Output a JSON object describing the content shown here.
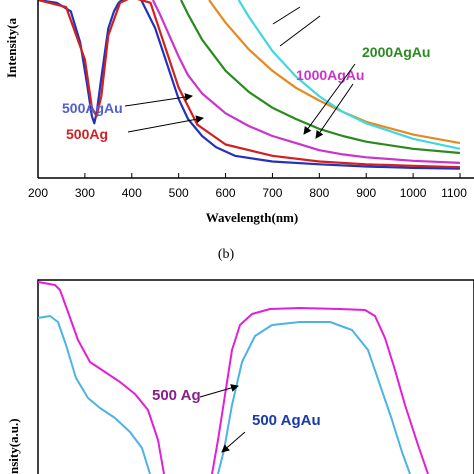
{
  "chart_data": [
    {
      "type": "line",
      "xlabel": "Wavelength(nm)",
      "ylabel": "Intensity(a",
      "xlim": [
        200,
        1100
      ],
      "xticks": [
        "200",
        "300",
        "400",
        "500",
        "600",
        "700",
        "800",
        "900",
        "1000",
        "1100"
      ],
      "grid": false,
      "series": [
        {
          "name": "500AgAu",
          "color": "#2233bb",
          "x": [
            200,
            240,
            270,
            290,
            305,
            315,
            320,
            325,
            335,
            350,
            362,
            372,
            385,
            400,
            420,
            450,
            480,
            500,
            520,
            550,
            580,
            620,
            700,
            800,
            900,
            1000,
            1100
          ],
          "y": [
            120,
            118,
            112,
            90,
            60,
            38,
            33,
            40,
            65,
            100,
            112,
            118,
            122,
            122,
            120,
            100,
            70,
            50,
            36,
            24,
            16,
            10,
            6,
            4,
            2.5,
            1.5,
            1
          ]
        },
        {
          "name": "500Ag",
          "color": "#d21f1f",
          "x": [
            200,
            260,
            300,
            315,
            325,
            335,
            350,
            375,
            400,
            440,
            480,
            500,
            540,
            600,
            700,
            800,
            900,
            1000,
            1100
          ],
          "y": [
            120,
            115,
            78,
            44,
            38,
            52,
            95,
            118,
            122,
            118,
            78,
            58,
            32,
            18,
            10,
            6,
            4,
            3,
            2
          ]
        },
        {
          "name": "1000AgAu",
          "color": "#cc33cc",
          "x": [
            445,
            460,
            480,
            500,
            520,
            550,
            600,
            650,
            700,
            750,
            800,
            850,
            900,
            1000,
            1100
          ],
          "y": [
            120,
            110,
            95,
            80,
            67,
            54,
            40,
            31,
            24,
            19,
            14,
            11,
            9,
            6.5,
            5
          ]
        },
        {
          "name": "2000AgAu",
          "color": "#2a8a1f",
          "x": [
            505,
            520,
            550,
            600,
            650,
            700,
            750,
            800,
            850,
            900,
            1000,
            1100
          ],
          "y": [
            120,
            110,
            92,
            70,
            55,
            44,
            36,
            29,
            24,
            20,
            15,
            12
          ]
        },
        {
          "name": "",
          "color": "#e58a1f",
          "x": [
            565,
            580,
            600,
            650,
            700,
            750,
            800,
            850,
            900,
            1000,
            1100
          ],
          "y": [
            120,
            113,
            104,
            85,
            70,
            58,
            49,
            41,
            34,
            25,
            19
          ]
        },
        {
          "name": "",
          "color": "#40d8e0",
          "x": [
            628,
            650,
            700,
            750,
            800,
            850,
            900,
            1000,
            1100
          ],
          "y": [
            120,
            108,
            84,
            66,
            52,
            41,
            33,
            22,
            15
          ]
        }
      ],
      "annotations": [
        "500AgAu",
        "500Ag",
        "1000AgAu",
        "2000AgAu"
      ],
      "caption": "(b)"
    },
    {
      "type": "line",
      "ylabel": "nsity(a.u.)",
      "grid": false,
      "series": [
        {
          "name": "500 Ag",
          "color": "#e020d8"
        },
        {
          "name": "500 AgAu",
          "color": "#4cb4e4"
        }
      ],
      "annotations": [
        "500 Ag",
        "500 AgAu"
      ]
    }
  ]
}
